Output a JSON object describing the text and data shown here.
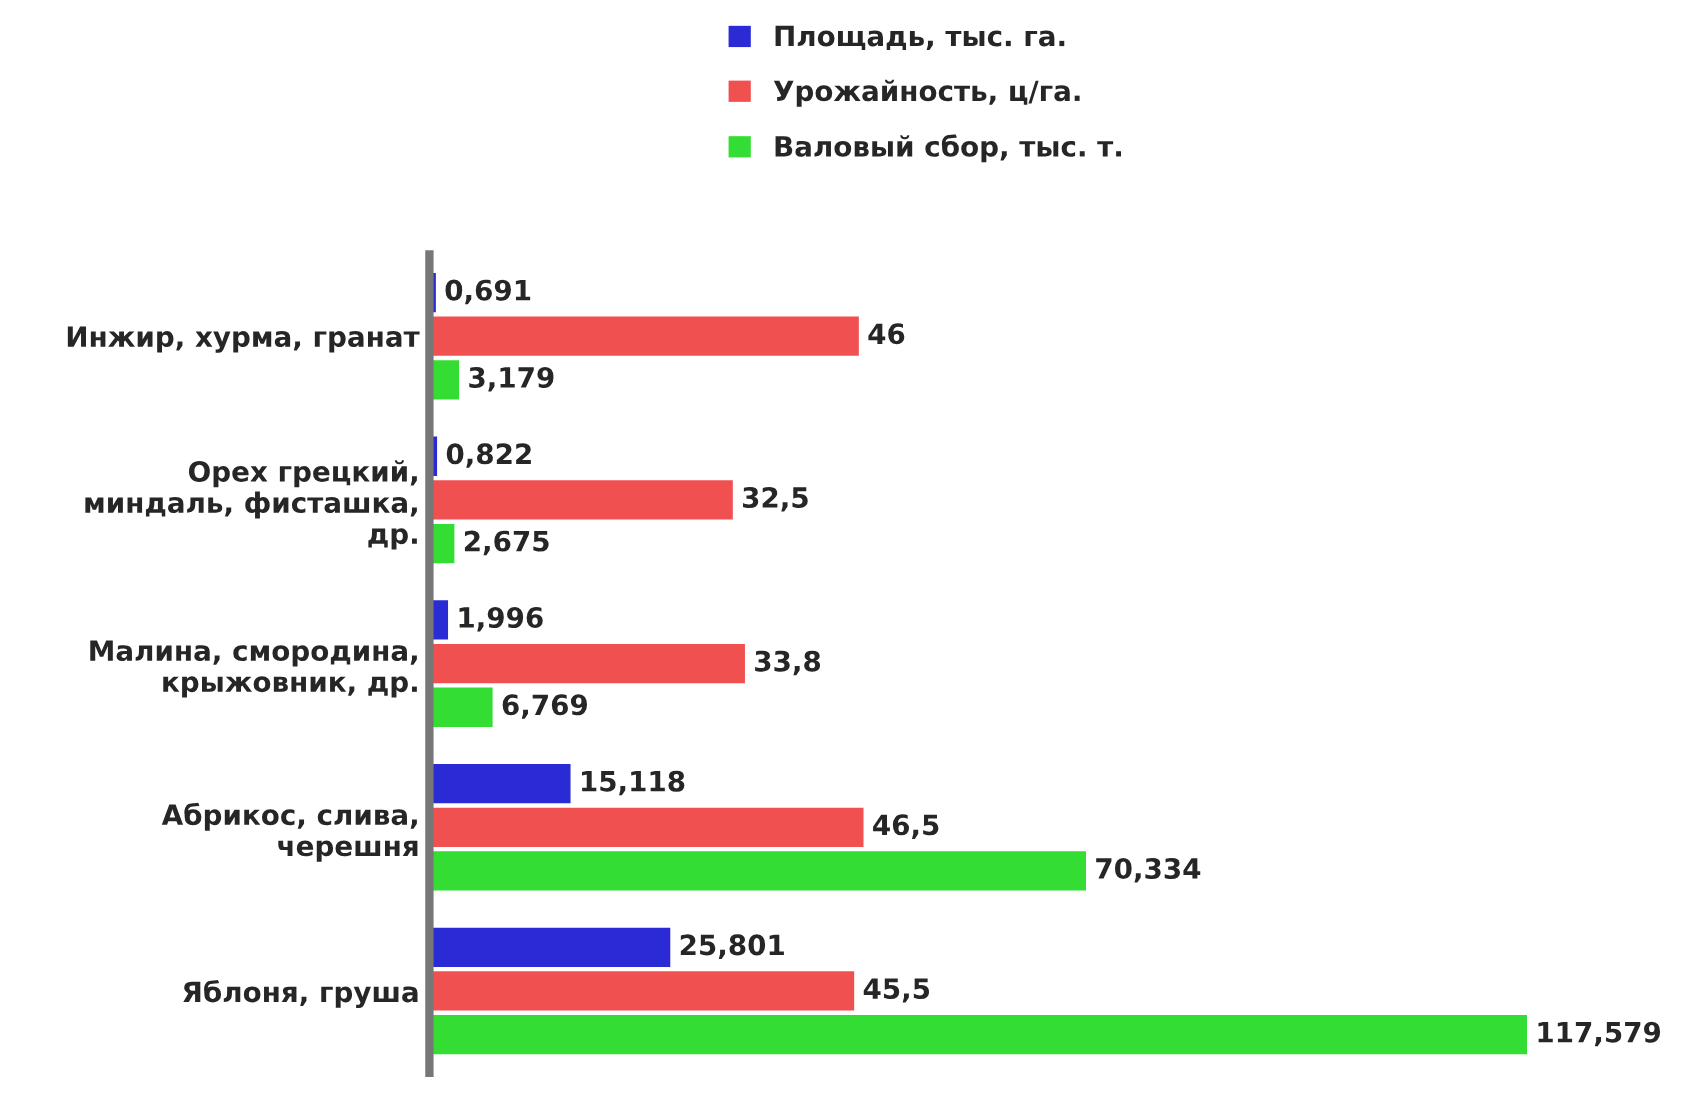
{
  "chart_data": {
    "type": "bar",
    "orientation": "horizontal",
    "legend": "top",
    "categories": [
      "Инжир, хурма, гранат",
      "Орех грецкий,\nминдаль, фисташка,\nдр.",
      "Малина, смородина,\nкрыжовник, др.",
      "Абрикос, слива,\nчерешня",
      "Яблоня, груша"
    ],
    "series": [
      {
        "name": "Площадь, тыс. га.",
        "color": "#2b2bd6",
        "values": [
          0.691,
          0.822,
          1.996,
          15.118,
          25.801
        ],
        "value_labels": [
          "0,691",
          "0,822",
          "1,996",
          "15,118",
          "25,801"
        ]
      },
      {
        "name": "Урожайность, ц/га.",
        "color": "#f05050",
        "values": [
          46,
          32.5,
          33.8,
          46.5,
          45.5
        ],
        "value_labels": [
          "46",
          "32,5",
          "33,8",
          "46,5",
          "45,5"
        ]
      },
      {
        "name": "Валовый сбор, тыс. т.",
        "color": "#33dd33",
        "values": [
          3.179,
          2.675,
          6.769,
          70.334,
          117.579
        ],
        "value_labels": [
          "3,179",
          "2,675",
          "6,769",
          "70,334",
          "117,579"
        ]
      }
    ]
  }
}
